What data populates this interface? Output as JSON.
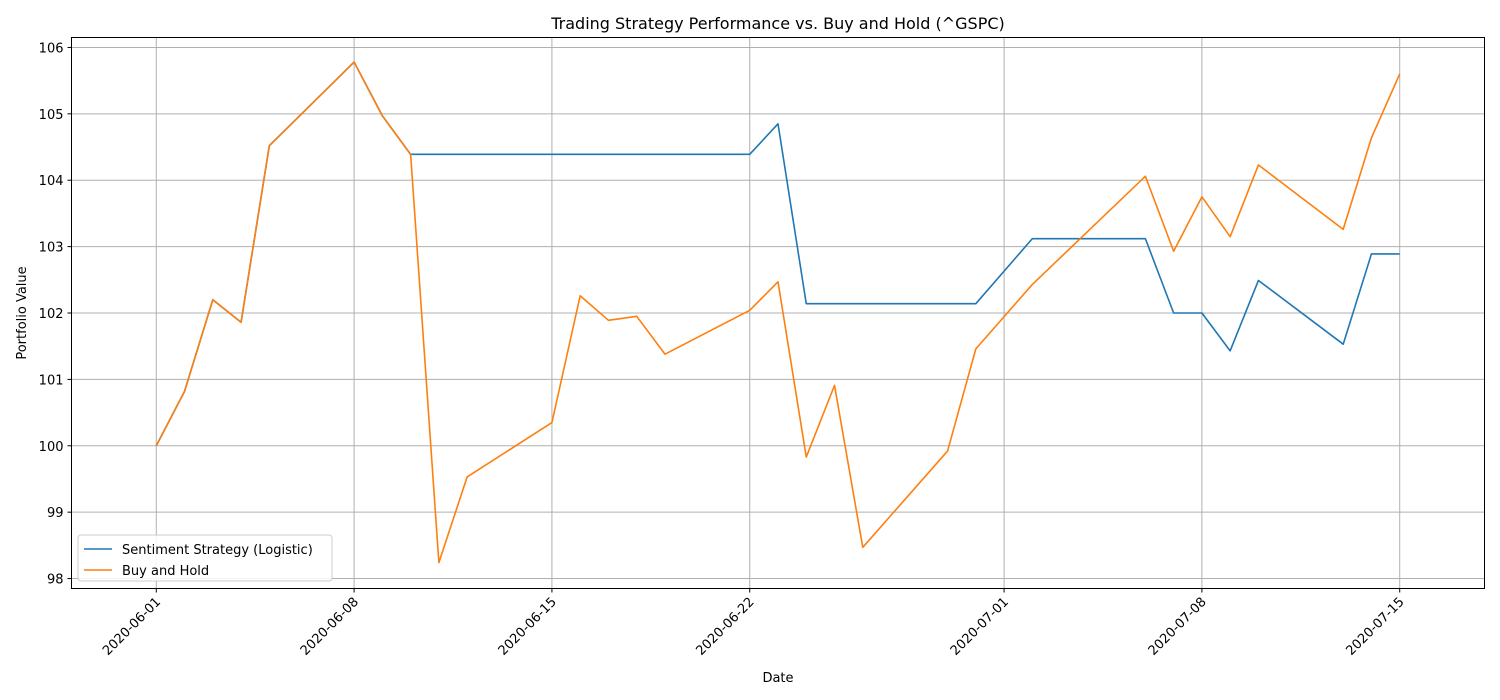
{
  "chart_data": {
    "type": "line",
    "title": "Trading Strategy Performance vs. Buy and Hold (^GSPC)",
    "xlabel": "Date",
    "ylabel": "Portfolio Value",
    "x_start": "2020-06-01",
    "x_end": "2020-07-15",
    "xlim": [
      "2020-05-29",
      "2020-07-18"
    ],
    "ylim": [
      97.85,
      106.15
    ],
    "grid": true,
    "legend_position": "lower-left",
    "x_ticks": [
      "2020-06-01",
      "2020-06-08",
      "2020-06-15",
      "2020-06-22",
      "2020-07-01",
      "2020-07-08",
      "2020-07-15"
    ],
    "y_ticks": [
      98,
      99,
      100,
      101,
      102,
      103,
      104,
      105,
      106
    ],
    "series": [
      {
        "name": "Sentiment Strategy (Logistic)",
        "color": "#1f77b4",
        "points": [
          [
            "2020-06-01",
            100.0
          ],
          [
            "2020-06-02",
            100.82
          ],
          [
            "2020-06-03",
            102.2
          ],
          [
            "2020-06-04",
            101.86
          ],
          [
            "2020-06-05",
            104.52
          ],
          [
            "2020-06-08",
            105.78
          ],
          [
            "2020-06-09",
            104.97
          ],
          [
            "2020-06-10",
            104.39
          ],
          [
            "2020-06-11",
            104.39
          ],
          [
            "2020-06-12",
            104.39
          ],
          [
            "2020-06-15",
            104.39
          ],
          [
            "2020-06-16",
            104.39
          ],
          [
            "2020-06-17",
            104.39
          ],
          [
            "2020-06-18",
            104.39
          ],
          [
            "2020-06-19",
            104.39
          ],
          [
            "2020-06-22",
            104.39
          ],
          [
            "2020-06-23",
            104.85
          ],
          [
            "2020-06-24",
            102.14
          ],
          [
            "2020-06-25",
            102.14
          ],
          [
            "2020-06-26",
            102.14
          ],
          [
            "2020-06-29",
            102.14
          ],
          [
            "2020-06-30",
            102.14
          ],
          [
            "2020-07-02",
            103.12
          ],
          [
            "2020-07-06",
            103.12
          ],
          [
            "2020-07-07",
            102.0
          ],
          [
            "2020-07-08",
            102.0
          ],
          [
            "2020-07-09",
            101.43
          ],
          [
            "2020-07-10",
            102.49
          ],
          [
            "2020-07-13",
            101.53
          ],
          [
            "2020-07-14",
            102.89
          ],
          [
            "2020-07-15",
            102.89
          ]
        ]
      },
      {
        "name": "Buy and Hold",
        "color": "#ff7f0e",
        "points": [
          [
            "2020-06-01",
            100.0
          ],
          [
            "2020-06-02",
            100.82
          ],
          [
            "2020-06-03",
            102.2
          ],
          [
            "2020-06-04",
            101.86
          ],
          [
            "2020-06-05",
            104.52
          ],
          [
            "2020-06-08",
            105.78
          ],
          [
            "2020-06-09",
            104.97
          ],
          [
            "2020-06-10",
            104.39
          ],
          [
            "2020-06-11",
            98.24
          ],
          [
            "2020-06-12",
            99.53
          ],
          [
            "2020-06-15",
            100.35
          ],
          [
            "2020-06-16",
            102.26
          ],
          [
            "2020-06-17",
            101.89
          ],
          [
            "2020-06-18",
            101.95
          ],
          [
            "2020-06-19",
            101.38
          ],
          [
            "2020-06-22",
            102.04
          ],
          [
            "2020-06-23",
            102.47
          ],
          [
            "2020-06-24",
            99.83
          ],
          [
            "2020-06-25",
            100.91
          ],
          [
            "2020-06-26",
            98.47
          ],
          [
            "2020-06-29",
            99.92
          ],
          [
            "2020-06-30",
            101.46
          ],
          [
            "2020-07-02",
            102.43
          ],
          [
            "2020-07-06",
            104.06
          ],
          [
            "2020-07-07",
            102.93
          ],
          [
            "2020-07-08",
            103.75
          ],
          [
            "2020-07-09",
            103.15
          ],
          [
            "2020-07-10",
            104.23
          ],
          [
            "2020-07-13",
            103.26
          ],
          [
            "2020-07-14",
            104.64
          ],
          [
            "2020-07-15",
            105.6
          ]
        ]
      }
    ]
  }
}
